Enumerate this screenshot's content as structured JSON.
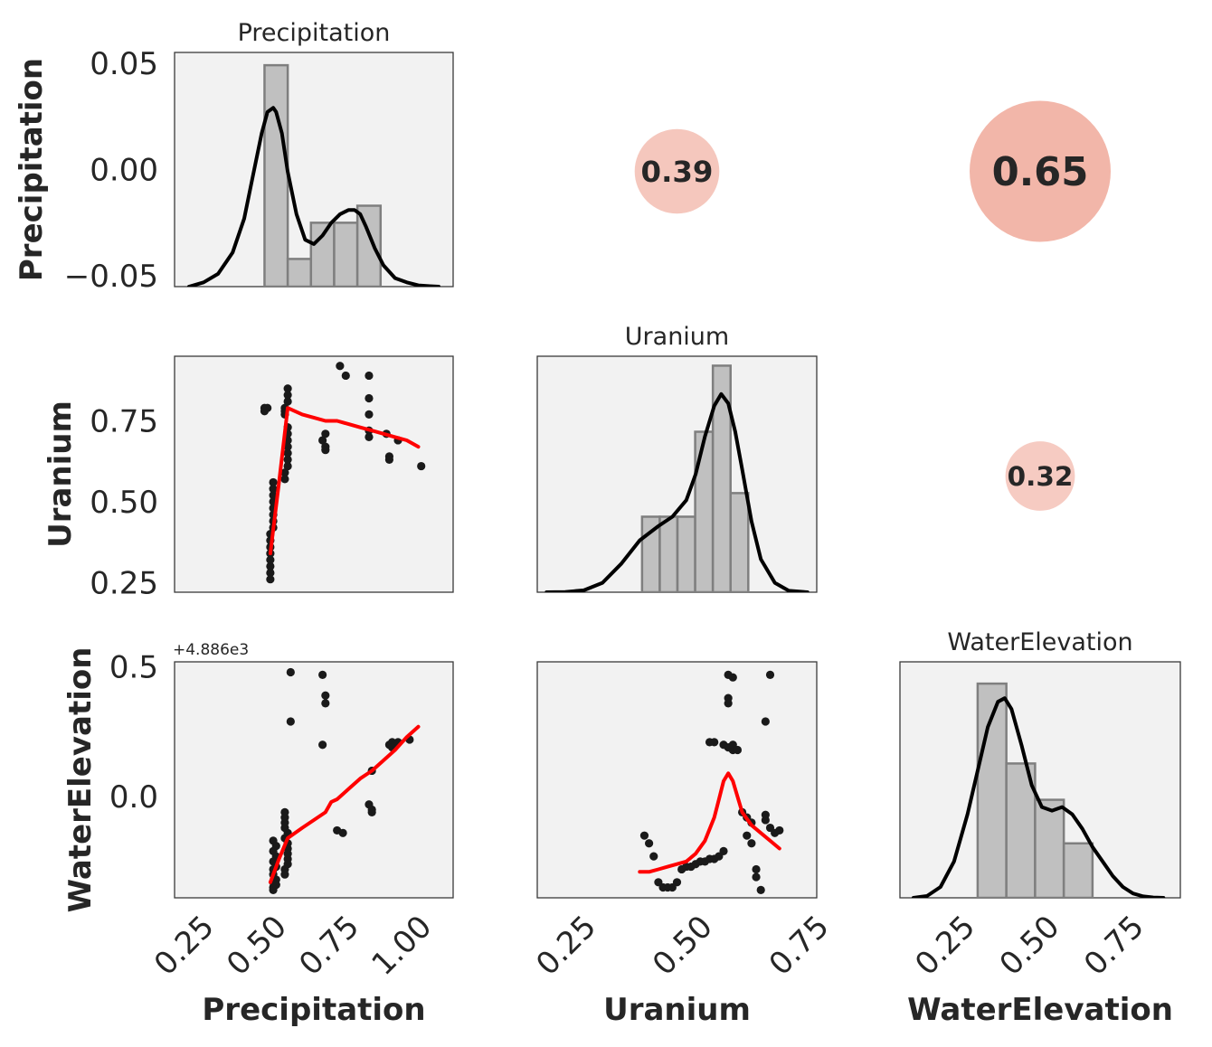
{
  "chart_data": {
    "type": "pairgrid",
    "variables": [
      "Precipitation",
      "Uranium",
      "WaterElevation"
    ],
    "colors": {
      "panel_bg": "#f2f2f2",
      "hist_fill": "#c0c0c0",
      "hist_edge": "#7f7f7f",
      "kde_line": "#000000",
      "regression_line": "#ff0000",
      "scatter_points": "#1a1a1a",
      "corr_circle": "#e8806a"
    },
    "diagonal": [
      {
        "name": "Precipitation",
        "title": "Precipitation",
        "bins": [
          {
            "lo": 0.45,
            "hi": 0.53,
            "height": 0.052
          },
          {
            "lo": 0.53,
            "hi": 0.61,
            "height": 0.0065
          },
          {
            "lo": 0.61,
            "hi": 0.69,
            "height": 0.015
          },
          {
            "lo": 0.69,
            "hi": 0.77,
            "height": 0.015
          },
          {
            "lo": 0.77,
            "hi": 0.85,
            "height": 0.019
          }
        ],
        "kde": {
          "x": [
            0.19,
            0.24,
            0.29,
            0.34,
            0.38,
            0.41,
            0.44,
            0.46,
            0.48,
            0.49,
            0.51,
            0.53,
            0.56,
            0.59,
            0.62,
            0.65,
            0.68,
            0.71,
            0.74,
            0.76,
            0.78,
            0.8,
            0.83,
            0.86,
            0.9,
            0.94,
            0.98,
            1.02,
            1.05
          ],
          "y": [
            0.0,
            0.001,
            0.003,
            0.008,
            0.016,
            0.026,
            0.036,
            0.041,
            0.042,
            0.041,
            0.036,
            0.027,
            0.017,
            0.011,
            0.01,
            0.012,
            0.015,
            0.017,
            0.018,
            0.018,
            0.017,
            0.014,
            0.009,
            0.005,
            0.002,
            0.001,
            0.0003,
            0.0001,
            0.0
          ]
        },
        "xlim": [
          0.14,
          1.1
        ],
        "ylim": [
          0,
          0.055
        ]
      },
      {
        "name": "Uranium",
        "title": "Uranium",
        "bins": [
          {
            "lo": 0.365,
            "hi": 0.403,
            "height": 1.6
          },
          {
            "lo": 0.403,
            "hi": 0.441,
            "height": 1.6
          },
          {
            "lo": 0.441,
            "hi": 0.479,
            "height": 1.6
          },
          {
            "lo": 0.479,
            "hi": 0.517,
            "height": 3.4
          },
          {
            "lo": 0.517,
            "hi": 0.555,
            "height": 4.8
          },
          {
            "lo": 0.555,
            "hi": 0.593,
            "height": 2.1
          }
        ],
        "kde": {
          "x": [
            0.16,
            0.2,
            0.24,
            0.28,
            0.32,
            0.36,
            0.4,
            0.43,
            0.46,
            0.48,
            0.5,
            0.52,
            0.535,
            0.55,
            0.565,
            0.58,
            0.6,
            0.62,
            0.65,
            0.68,
            0.72
          ],
          "y": [
            0.0,
            0.005,
            0.04,
            0.2,
            0.6,
            1.1,
            1.4,
            1.6,
            1.95,
            2.5,
            3.3,
            3.95,
            4.2,
            4.0,
            3.4,
            2.6,
            1.5,
            0.7,
            0.2,
            0.03,
            0.0
          ]
        },
        "xlim": [
          0.14,
          0.74
        ],
        "ylim": [
          0,
          5.0
        ]
      },
      {
        "name": "WaterElevation",
        "title": "WaterElevation",
        "bins": [
          {
            "lo": 0.28,
            "hi": 0.365,
            "height": 5.9
          },
          {
            "lo": 0.365,
            "hi": 0.45,
            "height": 3.7
          },
          {
            "lo": 0.45,
            "hi": 0.535,
            "height": 2.7
          },
          {
            "lo": 0.535,
            "hi": 0.62,
            "height": 1.5
          }
        ],
        "kde": {
          "x": [
            0.09,
            0.13,
            0.17,
            0.21,
            0.25,
            0.28,
            0.31,
            0.34,
            0.36,
            0.38,
            0.41,
            0.44,
            0.47,
            0.5,
            0.53,
            0.56,
            0.59,
            0.62,
            0.65,
            0.68,
            0.71,
            0.74,
            0.77,
            0.8,
            0.83
          ],
          "y": [
            0.0,
            0.05,
            0.3,
            1.0,
            2.3,
            3.5,
            4.7,
            5.4,
            5.5,
            5.2,
            4.2,
            3.1,
            2.5,
            2.4,
            2.5,
            2.3,
            1.9,
            1.4,
            1.0,
            0.6,
            0.3,
            0.12,
            0.04,
            0.01,
            0.0
          ]
        },
        "xlim": [
          0.05,
          0.88
        ],
        "ylim": [
          0,
          6.5
        ]
      }
    ],
    "scatter": [
      {
        "x_var": "Precipitation",
        "y_var": "Uranium",
        "xlim": [
          0.14,
          1.1
        ],
        "ylim": [
          0.22,
          0.95
        ],
        "points": [
          [
            0.45,
            0.79
          ],
          [
            0.46,
            0.79
          ],
          [
            0.45,
            0.78
          ],
          [
            0.47,
            0.26
          ],
          [
            0.47,
            0.28
          ],
          [
            0.47,
            0.3
          ],
          [
            0.47,
            0.32
          ],
          [
            0.47,
            0.34
          ],
          [
            0.47,
            0.36
          ],
          [
            0.47,
            0.38
          ],
          [
            0.47,
            0.4
          ],
          [
            0.48,
            0.42
          ],
          [
            0.48,
            0.44
          ],
          [
            0.48,
            0.46
          ],
          [
            0.48,
            0.48
          ],
          [
            0.48,
            0.5
          ],
          [
            0.48,
            0.52
          ],
          [
            0.48,
            0.54
          ],
          [
            0.48,
            0.56
          ],
          [
            0.52,
            0.57
          ],
          [
            0.52,
            0.59
          ],
          [
            0.53,
            0.61
          ],
          [
            0.53,
            0.63
          ],
          [
            0.53,
            0.65
          ],
          [
            0.53,
            0.67
          ],
          [
            0.53,
            0.69
          ],
          [
            0.53,
            0.71
          ],
          [
            0.53,
            0.73
          ],
          [
            0.52,
            0.77
          ],
          [
            0.52,
            0.79
          ],
          [
            0.53,
            0.81
          ],
          [
            0.53,
            0.83
          ],
          [
            0.53,
            0.85
          ],
          [
            0.52,
            0.78
          ],
          [
            0.65,
            0.69
          ],
          [
            0.66,
            0.67
          ],
          [
            0.66,
            0.66
          ],
          [
            0.66,
            0.71
          ],
          [
            0.71,
            0.92
          ],
          [
            0.73,
            0.89
          ],
          [
            0.81,
            0.89
          ],
          [
            0.81,
            0.82
          ],
          [
            0.81,
            0.77
          ],
          [
            0.81,
            0.72
          ],
          [
            0.81,
            0.7
          ],
          [
            0.87,
            0.71
          ],
          [
            0.88,
            0.64
          ],
          [
            0.88,
            0.63
          ],
          [
            0.91,
            0.69
          ],
          [
            0.99,
            0.61
          ]
        ],
        "fit": {
          "x": [
            0.47,
            0.5,
            0.53,
            0.58,
            0.62,
            0.66,
            0.7,
            0.74,
            0.78,
            0.82,
            0.86,
            0.9,
            0.94,
            0.98
          ],
          "y": [
            0.34,
            0.56,
            0.79,
            0.77,
            0.76,
            0.75,
            0.75,
            0.74,
            0.73,
            0.72,
            0.71,
            0.7,
            0.69,
            0.67
          ]
        }
      },
      {
        "x_var": "Precipitation",
        "y_var": "WaterElevation",
        "xlim": [
          0.14,
          1.1
        ],
        "ylim": [
          -0.39,
          0.52
        ],
        "y_offset": "+4.886e3",
        "points": [
          [
            0.48,
            -0.36
          ],
          [
            0.48,
            -0.35
          ],
          [
            0.49,
            -0.34
          ],
          [
            0.48,
            -0.33
          ],
          [
            0.49,
            -0.32
          ],
          [
            0.48,
            -0.3
          ],
          [
            0.48,
            -0.28
          ],
          [
            0.49,
            -0.27
          ],
          [
            0.48,
            -0.25
          ],
          [
            0.49,
            -0.23
          ],
          [
            0.48,
            -0.21
          ],
          [
            0.49,
            -0.19
          ],
          [
            0.48,
            -0.17
          ],
          [
            0.52,
            -0.3
          ],
          [
            0.52,
            -0.28
          ],
          [
            0.53,
            -0.26
          ],
          [
            0.53,
            -0.24
          ],
          [
            0.53,
            -0.22
          ],
          [
            0.53,
            -0.2
          ],
          [
            0.53,
            -0.18
          ],
          [
            0.52,
            -0.16
          ],
          [
            0.53,
            -0.14
          ],
          [
            0.52,
            -0.12
          ],
          [
            0.52,
            -0.1
          ],
          [
            0.52,
            -0.08
          ],
          [
            0.52,
            -0.06
          ],
          [
            0.54,
            0.48
          ],
          [
            0.54,
            0.29
          ],
          [
            0.65,
            0.47
          ],
          [
            0.66,
            0.39
          ],
          [
            0.66,
            0.36
          ],
          [
            0.65,
            0.2
          ],
          [
            0.7,
            -0.13
          ],
          [
            0.72,
            -0.14
          ],
          [
            0.82,
            0.1
          ],
          [
            0.81,
            -0.03
          ],
          [
            0.82,
            -0.05
          ],
          [
            0.82,
            -0.06
          ],
          [
            0.88,
            0.2
          ],
          [
            0.89,
            0.21
          ],
          [
            0.89,
            0.19
          ],
          [
            0.9,
            0.2
          ],
          [
            0.91,
            0.21
          ],
          [
            0.95,
            0.22
          ]
        ],
        "fit": {
          "x": [
            0.47,
            0.5,
            0.53,
            0.58,
            0.62,
            0.66,
            0.68,
            0.7,
            0.74,
            0.78,
            0.82,
            0.86,
            0.9,
            0.94,
            0.98
          ],
          "y": [
            -0.33,
            -0.24,
            -0.16,
            -0.12,
            -0.09,
            -0.06,
            -0.02,
            -0.01,
            0.03,
            0.07,
            0.1,
            0.14,
            0.18,
            0.23,
            0.27
          ]
        }
      },
      {
        "x_var": "Uranium",
        "y_var": "WaterElevation",
        "xlim": [
          0.14,
          0.74
        ],
        "ylim": [
          -0.39,
          0.52
        ],
        "points": [
          [
            0.37,
            -0.15
          ],
          [
            0.38,
            -0.18
          ],
          [
            0.39,
            -0.23
          ],
          [
            0.4,
            -0.33
          ],
          [
            0.41,
            -0.35
          ],
          [
            0.42,
            -0.35
          ],
          [
            0.43,
            -0.35
          ],
          [
            0.44,
            -0.33
          ],
          [
            0.45,
            -0.28
          ],
          [
            0.46,
            -0.27
          ],
          [
            0.47,
            -0.27
          ],
          [
            0.48,
            -0.26
          ],
          [
            0.49,
            -0.25
          ],
          [
            0.5,
            -0.25
          ],
          [
            0.51,
            -0.24
          ],
          [
            0.52,
            -0.24
          ],
          [
            0.53,
            -0.23
          ],
          [
            0.54,
            -0.21
          ],
          [
            0.51,
            0.21
          ],
          [
            0.52,
            0.21
          ],
          [
            0.54,
            0.2
          ],
          [
            0.55,
            0.47
          ],
          [
            0.56,
            0.46
          ],
          [
            0.55,
            0.38
          ],
          [
            0.55,
            0.36
          ],
          [
            0.55,
            0.19
          ],
          [
            0.56,
            0.18
          ],
          [
            0.56,
            0.2
          ],
          [
            0.57,
            0.18
          ],
          [
            0.58,
            -0.06
          ],
          [
            0.59,
            -0.08
          ],
          [
            0.6,
            -0.1
          ],
          [
            0.59,
            -0.15
          ],
          [
            0.6,
            -0.18
          ],
          [
            0.61,
            -0.28
          ],
          [
            0.61,
            -0.31
          ],
          [
            0.62,
            -0.36
          ],
          [
            0.63,
            -0.09
          ],
          [
            0.63,
            -0.07
          ],
          [
            0.64,
            -0.12
          ],
          [
            0.65,
            -0.14
          ],
          [
            0.66,
            -0.13
          ],
          [
            0.64,
            0.47
          ],
          [
            0.63,
            0.29
          ]
        ],
        "fit": {
          "x": [
            0.36,
            0.38,
            0.4,
            0.42,
            0.44,
            0.46,
            0.48,
            0.5,
            0.52,
            0.53,
            0.54,
            0.55,
            0.56,
            0.57,
            0.58,
            0.6,
            0.62,
            0.64,
            0.66
          ],
          "y": [
            -0.29,
            -0.29,
            -0.28,
            -0.27,
            -0.26,
            -0.25,
            -0.22,
            -0.17,
            -0.08,
            -0.01,
            0.06,
            0.09,
            0.06,
            0.0,
            -0.06,
            -0.11,
            -0.14,
            -0.17,
            -0.2
          ]
        }
      }
    ],
    "correlations": [
      {
        "row": 0,
        "col": 1,
        "value": "0.39"
      },
      {
        "row": 0,
        "col": 2,
        "value": "0.65"
      },
      {
        "row": 1,
        "col": 2,
        "value": "0.32"
      }
    ],
    "yticks": [
      {
        "row": 0,
        "ticks": [
          {
            "v": 0.05,
            "label": "0.05"
          },
          {
            "v": 0.0,
            "label": "0.00"
          },
          {
            "v": -0.05,
            "label": "−0.05"
          }
        ],
        "range": [
          -0.055,
          0.055
        ]
      },
      {
        "row": 1,
        "ticks": [
          {
            "v": 0.75,
            "label": "0.75"
          },
          {
            "v": 0.5,
            "label": "0.50"
          },
          {
            "v": 0.25,
            "label": "0.25"
          }
        ],
        "range": [
          0.22,
          0.95
        ]
      },
      {
        "row": 2,
        "ticks": [
          {
            "v": 0.5,
            "label": "0.5"
          },
          {
            "v": 0.0,
            "label": "0.0"
          }
        ],
        "range": [
          -0.39,
          0.52
        ]
      }
    ],
    "xticks": [
      {
        "col": 0,
        "ticks": [
          {
            "v": 0.25,
            "label": "0.25"
          },
          {
            "v": 0.5,
            "label": "0.50"
          },
          {
            "v": 0.75,
            "label": "0.75"
          },
          {
            "v": 1.0,
            "label": "1.00"
          }
        ]
      },
      {
        "col": 1,
        "ticks": [
          {
            "v": 0.25,
            "label": "0.25"
          },
          {
            "v": 0.5,
            "label": "0.50"
          },
          {
            "v": 0.75,
            "label": "0.75"
          }
        ]
      },
      {
        "col": 2,
        "ticks": [
          {
            "v": 0.25,
            "label": "0.25"
          },
          {
            "v": 0.5,
            "label": "0.50"
          },
          {
            "v": 0.75,
            "label": "0.75"
          }
        ]
      }
    ],
    "row_labels": [
      "Precipitation",
      "Uranium",
      "WaterElevation"
    ],
    "col_labels": [
      "Precipitation",
      "Uranium",
      "WaterElevation"
    ]
  }
}
